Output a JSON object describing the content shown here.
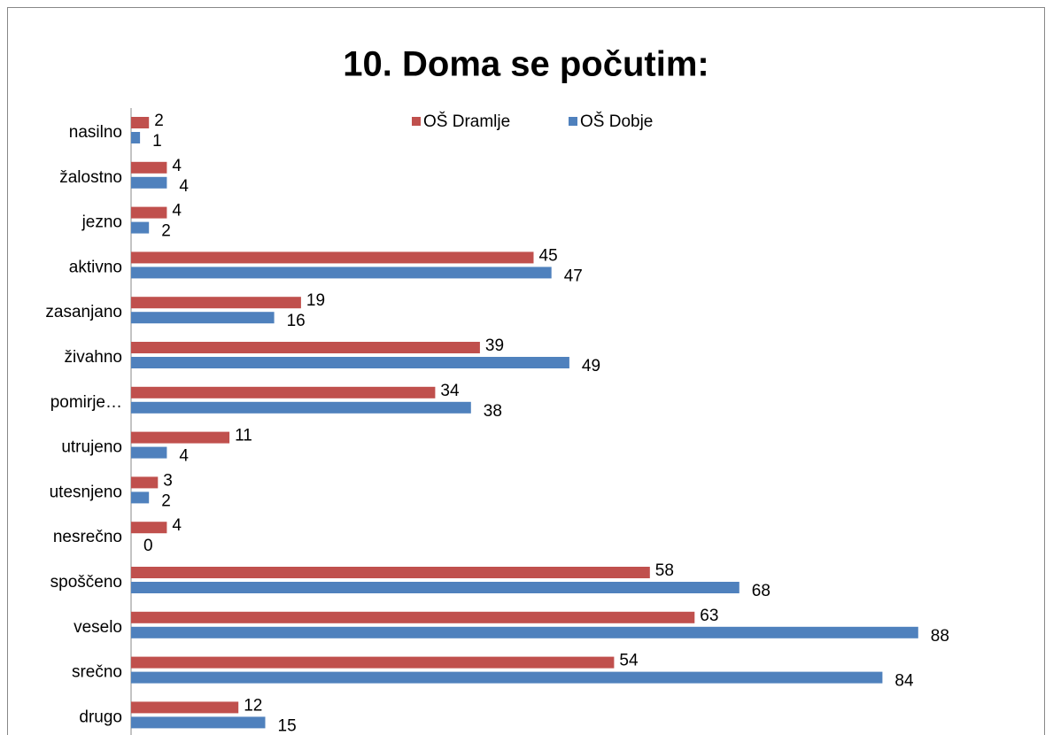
{
  "chart_data": {
    "type": "bar",
    "orientation": "horizontal",
    "title": "10. Doma se počutim:",
    "categories": [
      "nasilno",
      "žalostno",
      "jezno",
      "aktivno",
      "zasanjano",
      "živahno",
      "pomirje…",
      "utrujeno",
      "utesnjeno",
      "nesrečno",
      "spoščeno",
      "veselo",
      "srečno",
      "drugo"
    ],
    "series": [
      {
        "name": "OŠ Dramlje",
        "color": "#c0504d",
        "values": [
          2,
          4,
          4,
          45,
          19,
          39,
          34,
          11,
          3,
          4,
          58,
          63,
          54,
          12
        ]
      },
      {
        "name": "OŠ Dobje",
        "color": "#4f81bd",
        "values": [
          1,
          4,
          2,
          47,
          16,
          49,
          38,
          4,
          2,
          0,
          68,
          88,
          84,
          15
        ]
      }
    ],
    "xlim": [
      0,
      100
    ],
    "legend": "top"
  }
}
